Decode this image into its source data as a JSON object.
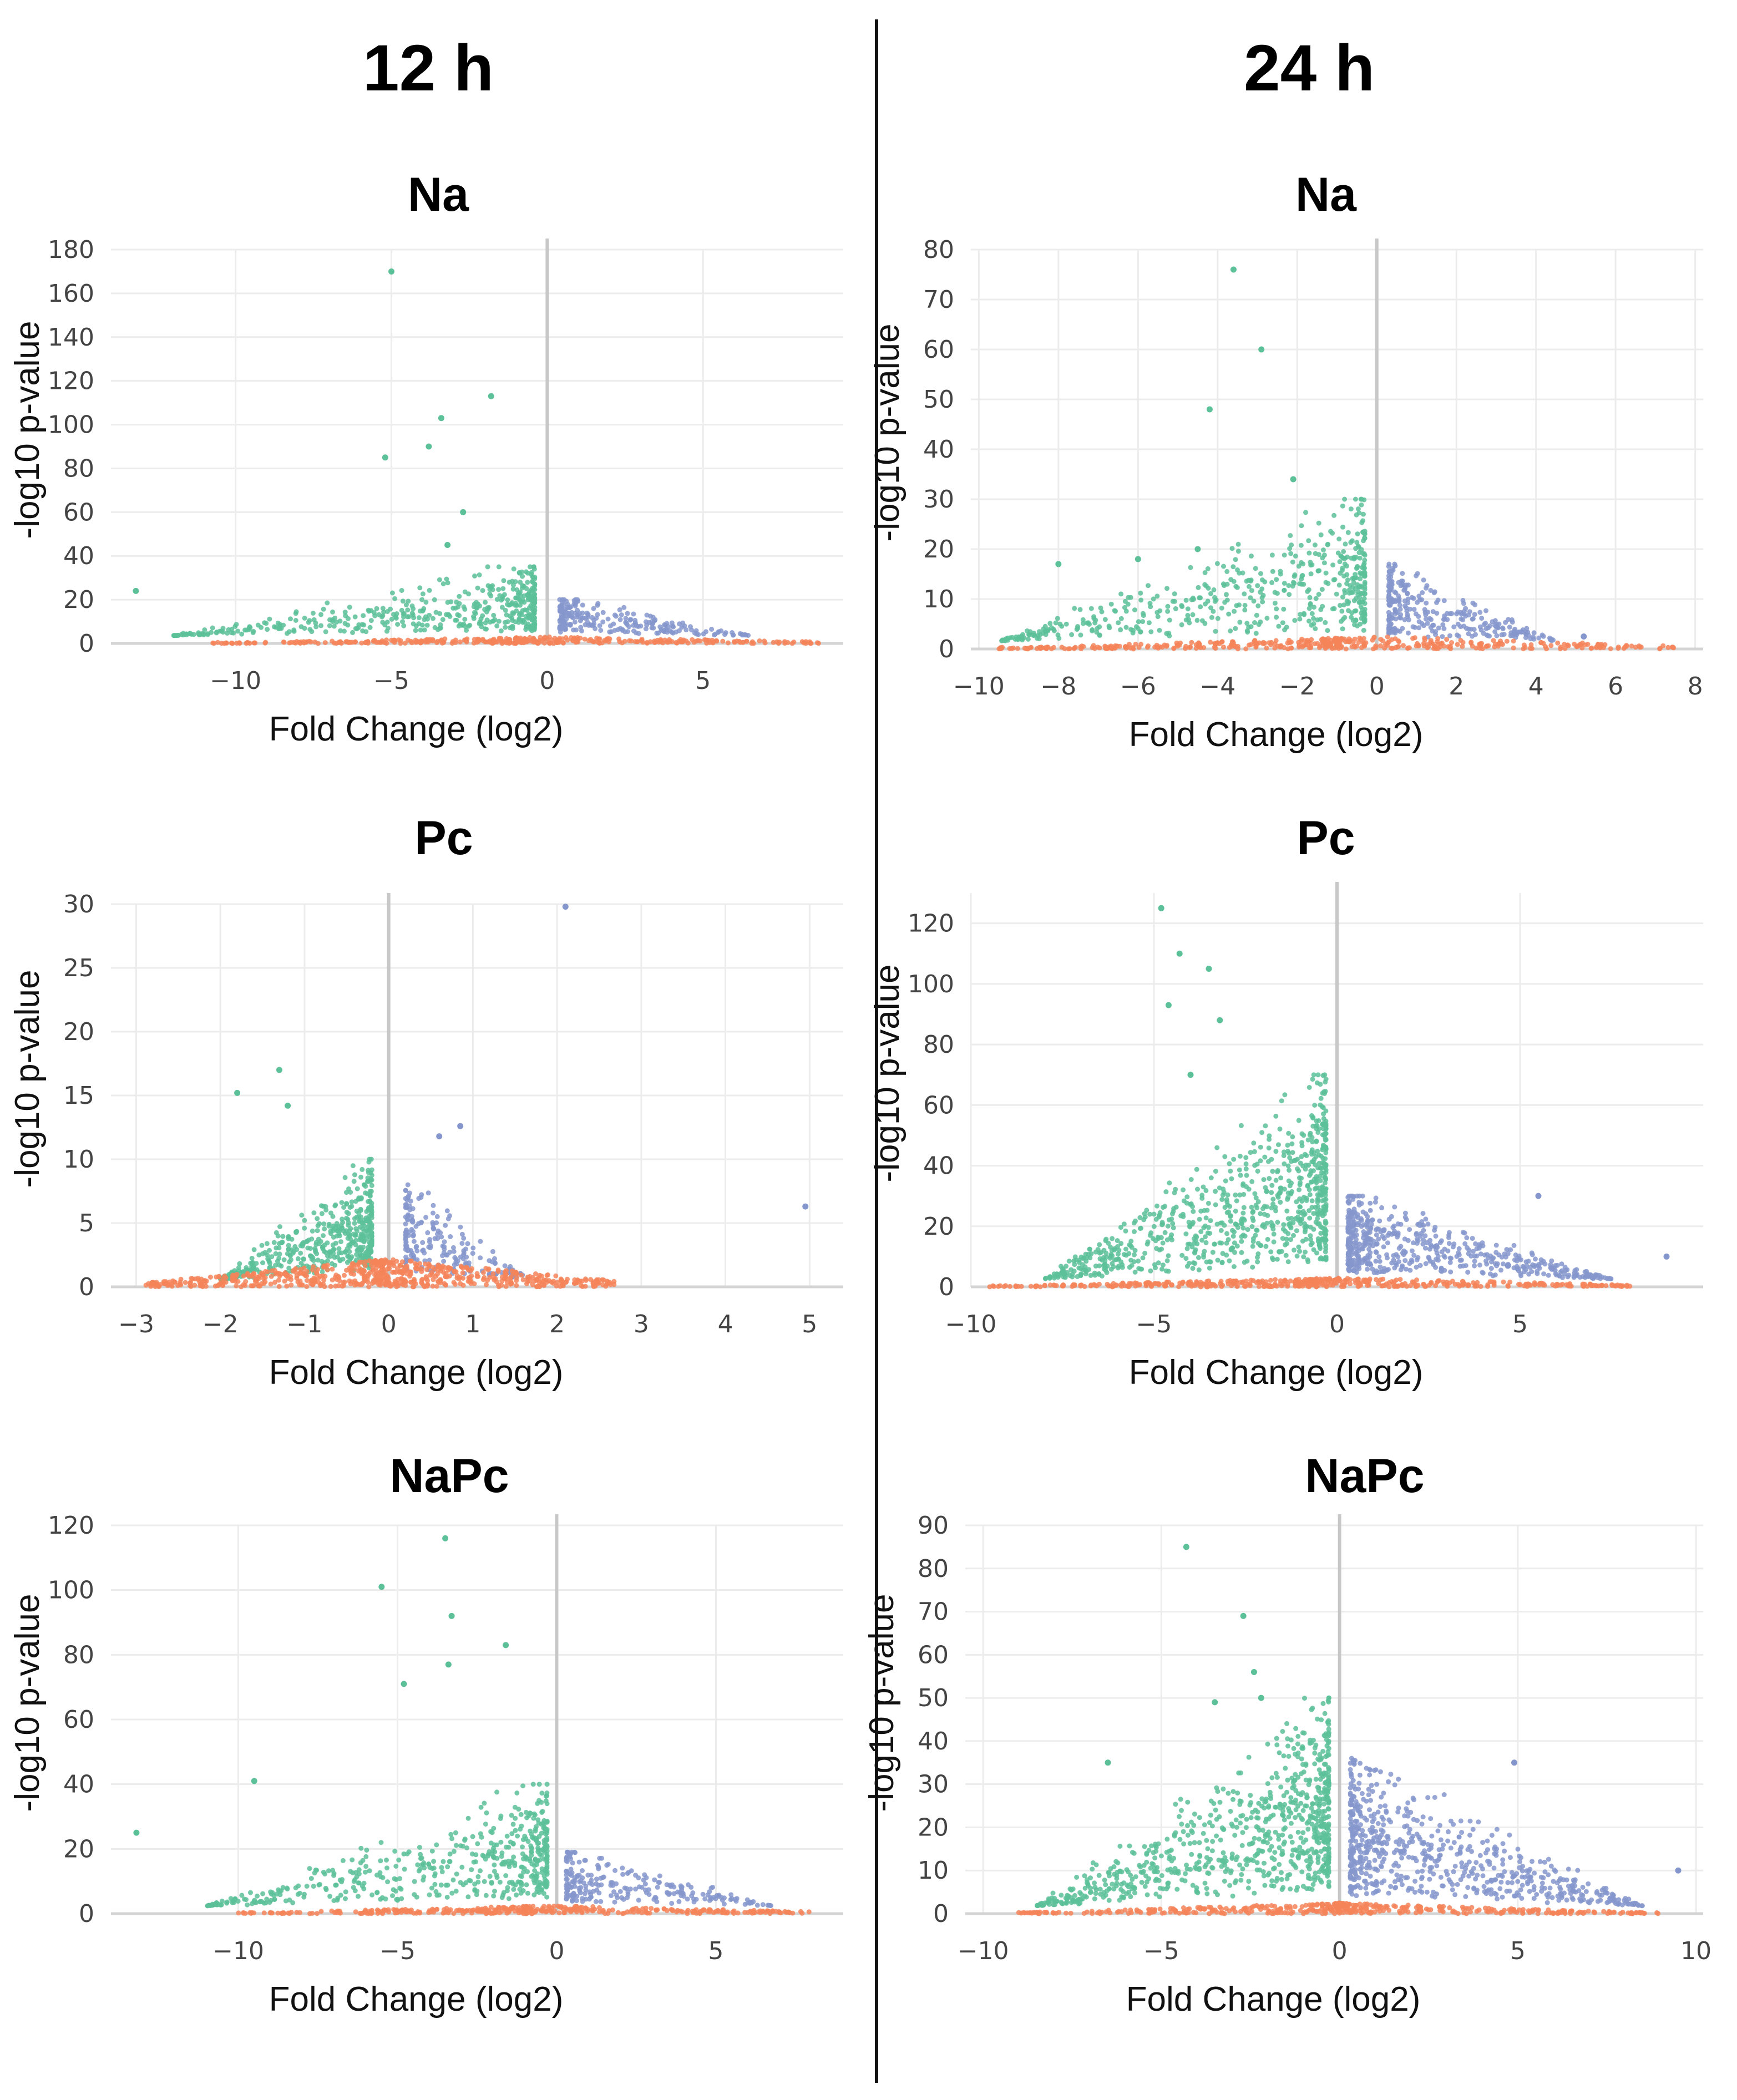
{
  "colors": {
    "down": "#5cc199",
    "up": "#8596cc",
    "ns": "#f48459"
  },
  "columns": [
    {
      "title": "12 h"
    },
    {
      "title": "24 h"
    }
  ],
  "chart_data": [
    {
      "type": "scatter",
      "title": "Na",
      "column": "12 h",
      "xlabel": "Fold Change (log2)",
      "ylabel": "-log10 p-value",
      "xlim": [
        -14,
        9.5
      ],
      "ylim": [
        0,
        180
      ],
      "xticks": [
        -10,
        -5,
        0,
        5
      ],
      "xtick_labels": [
        "−10",
        "−5",
        "0",
        "5"
      ],
      "yticks": [
        0,
        20,
        40,
        60,
        80,
        100,
        120,
        140,
        160,
        180
      ],
      "ytick_labels": [
        "0",
        "20",
        "40",
        "60",
        "80",
        "100",
        "120",
        "140",
        "160",
        "180"
      ],
      "highlight_points": [
        [
          -5,
          170
        ],
        [
          -1.8,
          113
        ],
        [
          -3.4,
          103
        ],
        [
          -3.8,
          90
        ],
        [
          -5.2,
          85
        ],
        [
          -13.2,
          24
        ],
        [
          -3.2,
          45
        ],
        [
          -2.7,
          60
        ]
      ],
      "series": [
        {
          "color": "down",
          "x_range": [
            -12,
            -0.4
          ],
          "y_max": 35,
          "n": 450
        },
        {
          "color": "up",
          "x_range": [
            0.4,
            6.5
          ],
          "y_max": 20,
          "n": 220
        },
        {
          "color": "ns",
          "x_range": [
            -11,
            9
          ],
          "y_max": 3,
          "n": 380
        }
      ]
    },
    {
      "type": "scatter",
      "title": "Na",
      "column": "24 h",
      "xlabel": "Fold Change (log2)",
      "ylabel": "-log10 p-value",
      "xlim": [
        -10.2,
        8.2
      ],
      "ylim": [
        0,
        80
      ],
      "xticks": [
        -10,
        -8,
        -6,
        -4,
        -2,
        0,
        2,
        4,
        6,
        8
      ],
      "xtick_labels": [
        "−10",
        "−8",
        "−6",
        "−4",
        "−2",
        "0",
        "2",
        "4",
        "6",
        "8"
      ],
      "yticks": [
        0,
        10,
        20,
        30,
        40,
        50,
        60,
        70,
        80
      ],
      "ytick_labels": [
        "0",
        "10",
        "20",
        "30",
        "40",
        "50",
        "60",
        "70",
        "80"
      ],
      "highlight_points": [
        [
          -3.6,
          76
        ],
        [
          -2.9,
          60
        ],
        [
          -4.2,
          48
        ],
        [
          -2.1,
          34
        ],
        [
          -4.5,
          20
        ],
        [
          -8,
          17
        ],
        [
          -6,
          18
        ],
        [
          5.2,
          2.5
        ]
      ],
      "series": [
        {
          "color": "down",
          "x_range": [
            -9.5,
            -0.3
          ],
          "y_max": 30,
          "n": 500
        },
        {
          "color": "up",
          "x_range": [
            0.3,
            4.5
          ],
          "y_max": 17,
          "n": 280
        },
        {
          "color": "ns",
          "x_range": [
            -9.5,
            7.5
          ],
          "y_max": 2.5,
          "n": 420
        }
      ]
    },
    {
      "type": "scatter",
      "title": "Pc",
      "column": "12 h",
      "xlabel": "Fold Change (log2)",
      "ylabel": "-log10 p-value",
      "xlim": [
        -3.3,
        5.4
      ],
      "ylim": [
        0,
        30
      ],
      "xticks": [
        -3,
        -2,
        -1,
        0,
        1,
        2,
        3,
        4,
        5
      ],
      "xtick_labels": [
        "−3",
        "−2",
        "−1",
        "0",
        "1",
        "2",
        "3",
        "4",
        "5"
      ],
      "yticks": [
        0,
        5,
        10,
        15,
        20,
        25,
        30
      ],
      "ytick_labels": [
        "0",
        "5",
        "10",
        "15",
        "20",
        "25",
        "30"
      ],
      "highlight_points": [
        [
          2.1,
          29.8
        ],
        [
          -1.3,
          17
        ],
        [
          -1.8,
          15.2
        ],
        [
          -1.2,
          14.2
        ],
        [
          4.95,
          6.3
        ],
        [
          0.85,
          12.6
        ],
        [
          0.6,
          11.8
        ]
      ],
      "series": [
        {
          "color": "down",
          "x_range": [
            -2,
            -0.2
          ],
          "y_max": 10,
          "n": 480
        },
        {
          "color": "up",
          "x_range": [
            0.2,
            1.7
          ],
          "y_max": 8,
          "n": 200
        },
        {
          "color": "ns",
          "x_range": [
            -2.9,
            2.7
          ],
          "y_max": 2.2,
          "n": 650
        }
      ]
    },
    {
      "type": "scatter",
      "title": "Pc",
      "column": "24 h",
      "xlabel": "Fold Change (log2)",
      "ylabel": "-log10 p-value",
      "xlim": [
        -10,
        10
      ],
      "ylim": [
        0,
        130
      ],
      "xticks": [
        -10,
        -5,
        0,
        5
      ],
      "xtick_labels": [
        "−10",
        "−5",
        "0",
        "5"
      ],
      "yticks": [
        0,
        20,
        40,
        60,
        80,
        100,
        120
      ],
      "ytick_labels": [
        "0",
        "20",
        "40",
        "60",
        "80",
        "100",
        "120"
      ],
      "highlight_points": [
        [
          -4.8,
          125
        ],
        [
          -4.3,
          110
        ],
        [
          -3.5,
          105
        ],
        [
          -3.2,
          88
        ],
        [
          -4.6,
          93
        ],
        [
          -4,
          70
        ],
        [
          9,
          10
        ],
        [
          5.5,
          30
        ]
      ],
      "series": [
        {
          "color": "down",
          "x_range": [
            -8,
            -0.3
          ],
          "y_max": 70,
          "n": 800
        },
        {
          "color": "up",
          "x_range": [
            0.3,
            7.5
          ],
          "y_max": 30,
          "n": 550
        },
        {
          "color": "ns",
          "x_range": [
            -9.5,
            8
          ],
          "y_max": 3,
          "n": 450
        }
      ]
    },
    {
      "type": "scatter",
      "title": "NaPc",
      "column": "12 h",
      "xlabel": "Fold Change (log2)",
      "ylabel": "-log10 p-value",
      "xlim": [
        -14,
        9
      ],
      "ylim": [
        0,
        120
      ],
      "xticks": [
        -10,
        -5,
        0,
        5
      ],
      "xtick_labels": [
        "−10",
        "−5",
        "0",
        "5"
      ],
      "yticks": [
        0,
        20,
        40,
        60,
        80,
        100,
        120
      ],
      "ytick_labels": [
        "0",
        "20",
        "40",
        "60",
        "80",
        "100",
        "120"
      ],
      "highlight_points": [
        [
          -3.5,
          116
        ],
        [
          -5.5,
          101
        ],
        [
          -3.3,
          92
        ],
        [
          -1.6,
          83
        ],
        [
          -3.4,
          77
        ],
        [
          -4.8,
          71
        ],
        [
          -13.2,
          25
        ],
        [
          -9.5,
          41
        ]
      ],
      "series": [
        {
          "color": "down",
          "x_range": [
            -11,
            -0.3
          ],
          "y_max": 40,
          "n": 500
        },
        {
          "color": "up",
          "x_range": [
            0.3,
            6.8
          ],
          "y_max": 19,
          "n": 230
        },
        {
          "color": "ns",
          "x_range": [
            -10,
            8
          ],
          "y_max": 2.5,
          "n": 380
        }
      ]
    },
    {
      "type": "scatter",
      "title": "NaPc",
      "column": "24 h",
      "xlabel": "Fold Change (log2)",
      "ylabel": "-log10 p-value",
      "xlim": [
        -10.5,
        10.2
      ],
      "ylim": [
        0,
        90
      ],
      "xticks": [
        -10,
        -5,
        0,
        5,
        10
      ],
      "xtick_labels": [
        "−10",
        "−5",
        "0",
        "5",
        "10"
      ],
      "yticks": [
        0,
        10,
        20,
        30,
        40,
        50,
        60,
        70,
        80,
        90
      ],
      "ytick_labels": [
        "0",
        "10",
        "20",
        "30",
        "40",
        "50",
        "60",
        "70",
        "80",
        "90"
      ],
      "highlight_points": [
        [
          -4.3,
          85
        ],
        [
          -2.7,
          69
        ],
        [
          -2.4,
          56
        ],
        [
          -3.5,
          49
        ],
        [
          -2.2,
          50
        ],
        [
          -6.5,
          35
        ],
        [
          9.5,
          10
        ],
        [
          4.9,
          35
        ]
      ],
      "series": [
        {
          "color": "down",
          "x_range": [
            -8.5,
            -0.3
          ],
          "y_max": 50,
          "n": 800
        },
        {
          "color": "up",
          "x_range": [
            0.3,
            8.5
          ],
          "y_max": 36,
          "n": 650
        },
        {
          "color": "ns",
          "x_range": [
            -9,
            9
          ],
          "y_max": 2.5,
          "n": 420
        }
      ]
    }
  ]
}
